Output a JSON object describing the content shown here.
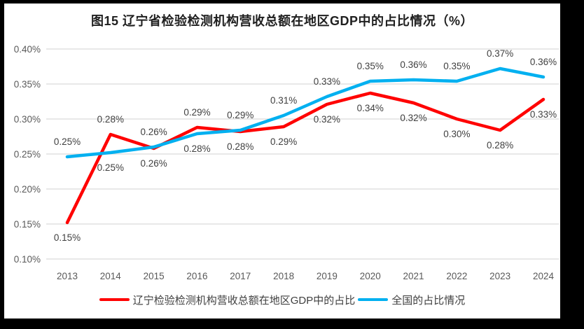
{
  "window": {
    "frame_color": "#000000",
    "canvas_color": "#ffffff"
  },
  "chart_data": {
    "type": "line",
    "title": "图15 辽宁省检验检测机构营收总额在地区GDP中的占比情况（%）",
    "x": [
      "2013",
      "2014",
      "2015",
      "2016",
      "2017",
      "2018",
      "2019",
      "2020",
      "2021",
      "2022",
      "2023",
      "2024"
    ],
    "y_axis": {
      "tick_labels": [
        "0.40%",
        "0.35%",
        "0.30%",
        "0.25%",
        "0.20%",
        "0.15%",
        "0.10%"
      ],
      "max": 0.4,
      "min": 0.1,
      "step": 0.05,
      "unit": "%",
      "grid": "horizontal"
    },
    "series": [
      {
        "key": "liaoning",
        "name": "辽宁检验检测机构营收总额在地区GDP中的占比",
        "color": "#FF0000",
        "values": [
          0.15,
          0.28,
          0.26,
          0.29,
          0.28,
          0.29,
          0.32,
          0.34,
          0.32,
          0.3,
          0.28,
          0.33
        ],
        "data_labels": [
          "0.15%",
          "0.28%",
          "0.26%",
          "0.29%",
          "0.28%",
          "0.29%",
          "0.32%",
          "0.34%",
          "0.32%",
          "0.30%",
          "0.28%",
          "0.33%"
        ],
        "plotted": [
          0.152,
          0.278,
          0.258,
          0.288,
          0.282,
          0.289,
          0.321,
          0.337,
          0.323,
          0.3,
          0.284,
          0.328
        ],
        "label_side": [
          "below",
          "above",
          "below",
          "above",
          "below",
          "below",
          "below",
          "below",
          "below",
          "below",
          "below",
          "below"
        ]
      },
      {
        "key": "national",
        "name": "全国的占比情况",
        "color": "#00B0F0",
        "values": [
          0.25,
          0.25,
          0.26,
          0.28,
          0.29,
          0.31,
          0.33,
          0.35,
          0.36,
          0.35,
          0.37,
          0.36
        ],
        "data_labels": [
          "0.25%",
          "0.25%",
          "0.26%",
          "0.28%",
          "0.29%",
          "0.31%",
          "0.33%",
          "0.35%",
          "0.36%",
          "0.35%",
          "0.37%",
          "0.36%"
        ],
        "plotted": [
          0.246,
          0.252,
          0.26,
          0.279,
          0.284,
          0.305,
          0.332,
          0.354,
          0.356,
          0.354,
          0.372,
          0.36
        ],
        "label_side": [
          "above",
          "below",
          "above",
          "below",
          "above",
          "above",
          "above",
          "above",
          "above",
          "above",
          "above",
          "above"
        ]
      }
    ],
    "legend": {
      "position": "bottom",
      "entries": [
        {
          "series": "liaoning",
          "label": "辽宁检验检测机构营收总额在地区GDP中的占比",
          "color": "#FF0000"
        },
        {
          "series": "national",
          "label": "全国的占比情况",
          "color": "#00B0F0"
        }
      ]
    },
    "colors": {
      "axis_text": "#595959",
      "data_label_text": "#3f3f3f",
      "title_text": "#1f1f1f",
      "gridline": "#d9d9d9"
    }
  }
}
